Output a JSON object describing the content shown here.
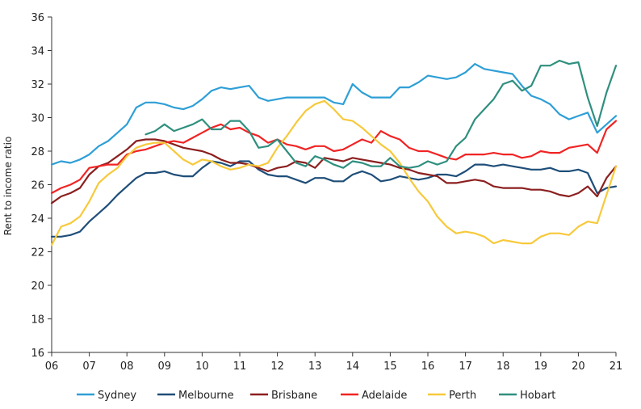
{
  "chart_data": {
    "type": "line",
    "title": "",
    "xlabel": "",
    "ylabel": "Rent to income ratio",
    "xlim": [
      2006,
      2021
    ],
    "ylim": [
      16,
      36
    ],
    "yticks": [
      16,
      18,
      20,
      22,
      24,
      26,
      28,
      30,
      32,
      34,
      36
    ],
    "xticks": [
      2006,
      2007,
      2008,
      2009,
      2010,
      2011,
      2012,
      2013,
      2014,
      2015,
      2016,
      2017,
      2018,
      2019,
      2020,
      2021
    ],
    "xtick_labels": [
      "06",
      "07",
      "08",
      "09",
      "10",
      "11",
      "12",
      "13",
      "14",
      "15",
      "16",
      "17",
      "18",
      "19",
      "20",
      "21"
    ],
    "grid": false,
    "legend_position": "bottom",
    "series": [
      {
        "name": "Sydney",
        "color": "#2e9fd6",
        "x": [
          2006.0,
          2006.25,
          2006.5,
          2006.75,
          2007.0,
          2007.25,
          2007.5,
          2007.75,
          2008.0,
          2008.25,
          2008.5,
          2008.75,
          2009.0,
          2009.25,
          2009.5,
          2009.75,
          2010.0,
          2010.25,
          2010.5,
          2010.75,
          2011.0,
          2011.25,
          2011.5,
          2011.75,
          2012.0,
          2012.25,
          2012.5,
          2012.75,
          2013.0,
          2013.25,
          2013.5,
          2013.75,
          2014.0,
          2014.25,
          2014.5,
          2014.75,
          2015.0,
          2015.25,
          2015.5,
          2015.75,
          2016.0,
          2016.25,
          2016.5,
          2016.75,
          2017.0,
          2017.25,
          2017.5,
          2017.75,
          2018.0,
          2018.25,
          2018.5,
          2018.75,
          2019.0,
          2019.25,
          2019.5,
          2019.75,
          2020.0,
          2020.25,
          2020.5,
          2020.75,
          2021.0
        ],
        "y": [
          27.2,
          27.4,
          27.3,
          27.5,
          27.8,
          28.3,
          28.6,
          29.1,
          29.6,
          30.6,
          30.9,
          30.9,
          30.8,
          30.6,
          30.5,
          30.7,
          31.1,
          31.6,
          31.8,
          31.7,
          31.8,
          31.9,
          31.2,
          31.0,
          31.1,
          31.2,
          31.2,
          31.2,
          31.2,
          31.2,
          30.9,
          30.8,
          32.0,
          31.5,
          31.2,
          31.2,
          31.2,
          31.8,
          31.8,
          32.1,
          32.5,
          32.4,
          32.3,
          32.4,
          32.7,
          33.2,
          32.9,
          32.8,
          32.7,
          32.6,
          31.9,
          31.3,
          31.1,
          30.8,
          30.2,
          29.9,
          30.1,
          30.3,
          29.1,
          29.6,
          30.1
        ]
      },
      {
        "name": "Melbourne",
        "color": "#1e4e79",
        "x": [
          2006.0,
          2006.25,
          2006.5,
          2006.75,
          2007.0,
          2007.25,
          2007.5,
          2007.75,
          2008.0,
          2008.25,
          2008.5,
          2008.75,
          2009.0,
          2009.25,
          2009.5,
          2009.75,
          2010.0,
          2010.25,
          2010.5,
          2010.75,
          2011.0,
          2011.25,
          2011.5,
          2011.75,
          2012.0,
          2012.25,
          2012.5,
          2012.75,
          2013.0,
          2013.25,
          2013.5,
          2013.75,
          2014.0,
          2014.25,
          2014.5,
          2014.75,
          2015.0,
          2015.25,
          2015.5,
          2015.75,
          2016.0,
          2016.25,
          2016.5,
          2016.75,
          2017.0,
          2017.25,
          2017.5,
          2017.75,
          2018.0,
          2018.25,
          2018.5,
          2018.75,
          2019.0,
          2019.25,
          2019.5,
          2019.75,
          2020.0,
          2020.25,
          2020.5,
          2020.75,
          2021.0
        ],
        "y": [
          22.9,
          22.9,
          23.0,
          23.2,
          23.8,
          24.3,
          24.8,
          25.4,
          25.9,
          26.4,
          26.7,
          26.7,
          26.8,
          26.6,
          26.5,
          26.5,
          27.0,
          27.4,
          27.3,
          27.1,
          27.4,
          27.4,
          26.9,
          26.6,
          26.5,
          26.5,
          26.3,
          26.1,
          26.4,
          26.4,
          26.2,
          26.2,
          26.6,
          26.8,
          26.6,
          26.2,
          26.3,
          26.5,
          26.4,
          26.3,
          26.4,
          26.6,
          26.6,
          26.5,
          26.8,
          27.2,
          27.2,
          27.1,
          27.2,
          27.1,
          27.0,
          26.9,
          26.9,
          27.0,
          26.8,
          26.8,
          26.9,
          26.7,
          25.5,
          25.8,
          25.9
        ]
      },
      {
        "name": "Brisbane",
        "color": "#8b1f1f",
        "x": [
          2006.0,
          2006.25,
          2006.5,
          2006.75,
          2007.0,
          2007.25,
          2007.5,
          2007.75,
          2008.0,
          2008.25,
          2008.5,
          2008.75,
          2009.0,
          2009.25,
          2009.5,
          2009.75,
          2010.0,
          2010.25,
          2010.5,
          2010.75,
          2011.0,
          2011.25,
          2011.5,
          2011.75,
          2012.0,
          2012.25,
          2012.5,
          2012.75,
          2013.0,
          2013.25,
          2013.5,
          2013.75,
          2014.0,
          2014.25,
          2014.5,
          2014.75,
          2015.0,
          2015.25,
          2015.5,
          2015.75,
          2016.0,
          2016.25,
          2016.5,
          2016.75,
          2017.0,
          2017.25,
          2017.5,
          2017.75,
          2018.0,
          2018.25,
          2018.5,
          2018.75,
          2019.0,
          2019.25,
          2019.5,
          2019.75,
          2020.0,
          2020.25,
          2020.5,
          2020.75,
          2021.0
        ],
        "y": [
          24.9,
          25.3,
          25.5,
          25.8,
          26.6,
          27.1,
          27.3,
          27.7,
          28.1,
          28.6,
          28.7,
          28.7,
          28.6,
          28.4,
          28.2,
          28.1,
          28.0,
          27.8,
          27.5,
          27.3,
          27.3,
          27.2,
          27.0,
          26.8,
          27.0,
          27.1,
          27.4,
          27.3,
          27.0,
          27.6,
          27.5,
          27.4,
          27.6,
          27.5,
          27.4,
          27.3,
          27.2,
          27.0,
          26.9,
          26.7,
          26.6,
          26.5,
          26.1,
          26.1,
          26.2,
          26.3,
          26.2,
          25.9,
          25.8,
          25.8,
          25.8,
          25.7,
          25.7,
          25.6,
          25.4,
          25.3,
          25.5,
          25.9,
          25.3,
          26.4,
          27.1
        ]
      },
      {
        "name": "Adelaide",
        "color": "#f02424",
        "x": [
          2006.0,
          2006.25,
          2006.5,
          2006.75,
          2007.0,
          2007.25,
          2007.5,
          2007.75,
          2008.0,
          2008.25,
          2008.5,
          2008.75,
          2009.0,
          2009.25,
          2009.5,
          2009.75,
          2010.0,
          2010.25,
          2010.5,
          2010.75,
          2011.0,
          2011.25,
          2011.5,
          2011.75,
          2012.0,
          2012.25,
          2012.5,
          2012.75,
          2013.0,
          2013.25,
          2013.5,
          2013.75,
          2014.0,
          2014.25,
          2014.5,
          2014.75,
          2015.0,
          2015.25,
          2015.5,
          2015.75,
          2016.0,
          2016.25,
          2016.5,
          2016.75,
          2017.0,
          2017.25,
          2017.5,
          2017.75,
          2018.0,
          2018.25,
          2018.5,
          2018.75,
          2019.0,
          2019.25,
          2019.5,
          2019.75,
          2020.0,
          2020.25,
          2020.5,
          2020.75,
          2021.0
        ],
        "y": [
          25.5,
          25.8,
          26.0,
          26.3,
          27.0,
          27.1,
          27.2,
          27.2,
          27.8,
          28.0,
          28.1,
          28.3,
          28.5,
          28.6,
          28.5,
          28.8,
          29.1,
          29.4,
          29.6,
          29.3,
          29.4,
          29.1,
          28.9,
          28.5,
          28.7,
          28.4,
          28.3,
          28.1,
          28.3,
          28.3,
          28.0,
          28.1,
          28.4,
          28.7,
          28.5,
          29.2,
          28.9,
          28.7,
          28.2,
          28.0,
          28.0,
          27.8,
          27.6,
          27.5,
          27.8,
          27.8,
          27.8,
          27.9,
          27.8,
          27.8,
          27.6,
          27.7,
          28.0,
          27.9,
          27.9,
          28.2,
          28.3,
          28.4,
          27.9,
          29.3,
          29.8
        ]
      },
      {
        "name": "Perth",
        "color": "#f7c93b",
        "x": [
          2006.0,
          2006.25,
          2006.5,
          2006.75,
          2007.0,
          2007.25,
          2007.5,
          2007.75,
          2008.0,
          2008.25,
          2008.5,
          2008.75,
          2009.0,
          2009.25,
          2009.5,
          2009.75,
          2010.0,
          2010.25,
          2010.5,
          2010.75,
          2011.0,
          2011.25,
          2011.5,
          2011.75,
          2012.0,
          2012.25,
          2012.5,
          2012.75,
          2013.0,
          2013.25,
          2013.5,
          2013.75,
          2014.0,
          2014.25,
          2014.5,
          2014.75,
          2015.0,
          2015.25,
          2015.5,
          2015.75,
          2016.0,
          2016.25,
          2016.5,
          2016.75,
          2017.0,
          2017.25,
          2017.5,
          2017.75,
          2018.0,
          2018.25,
          2018.5,
          2018.75,
          2019.0,
          2019.25,
          2019.5,
          2019.75,
          2020.0,
          2020.25,
          2020.5,
          2020.75,
          2021.0
        ],
        "y": [
          22.4,
          23.5,
          23.7,
          24.1,
          25.0,
          26.1,
          26.6,
          27.0,
          27.7,
          28.2,
          28.4,
          28.5,
          28.5,
          28.0,
          27.5,
          27.2,
          27.5,
          27.4,
          27.1,
          26.9,
          27.0,
          27.2,
          27.1,
          27.3,
          28.2,
          28.9,
          29.7,
          30.4,
          30.8,
          31.0,
          30.5,
          29.9,
          29.8,
          29.4,
          28.9,
          28.4,
          28.0,
          27.3,
          26.4,
          25.6,
          25.0,
          24.1,
          23.5,
          23.1,
          23.2,
          23.1,
          22.9,
          22.5,
          22.7,
          22.6,
          22.5,
          22.5,
          22.9,
          23.1,
          23.1,
          23.0,
          23.5,
          23.8,
          23.7,
          25.4,
          27.1
        ]
      },
      {
        "name": "Hobart",
        "color": "#2f8f7f",
        "x": [
          2008.5,
          2008.75,
          2009.0,
          2009.25,
          2009.5,
          2009.75,
          2010.0,
          2010.25,
          2010.5,
          2010.75,
          2011.0,
          2011.25,
          2011.5,
          2011.75,
          2012.0,
          2012.25,
          2012.5,
          2012.75,
          2013.0,
          2013.25,
          2013.5,
          2013.75,
          2014.0,
          2014.25,
          2014.5,
          2014.75,
          2015.0,
          2015.25,
          2015.5,
          2015.75,
          2016.0,
          2016.25,
          2016.5,
          2016.75,
          2017.0,
          2017.25,
          2017.5,
          2017.75,
          2018.0,
          2018.25,
          2018.5,
          2018.75,
          2019.0,
          2019.25,
          2019.5,
          2019.75,
          2020.0,
          2020.25,
          2020.5,
          2020.75,
          2021.0
        ],
        "y": [
          29.0,
          29.2,
          29.6,
          29.2,
          29.4,
          29.6,
          29.9,
          29.3,
          29.3,
          29.8,
          29.8,
          29.2,
          28.2,
          28.3,
          28.7,
          28.0,
          27.3,
          27.1,
          27.7,
          27.5,
          27.2,
          27.0,
          27.4,
          27.3,
          27.1,
          27.1,
          27.6,
          27.1,
          27.0,
          27.1,
          27.4,
          27.2,
          27.4,
          28.3,
          28.8,
          29.9,
          30.5,
          31.1,
          32.0,
          32.2,
          31.6,
          31.9,
          33.1,
          33.1,
          33.4,
          33.2,
          33.3,
          31.2,
          29.5,
          31.5,
          33.1
        ]
      }
    ]
  },
  "legend_labels": [
    "Sydney",
    "Melbourne",
    "Brisbane",
    "Adelaide",
    "Perth",
    "Hobart"
  ]
}
